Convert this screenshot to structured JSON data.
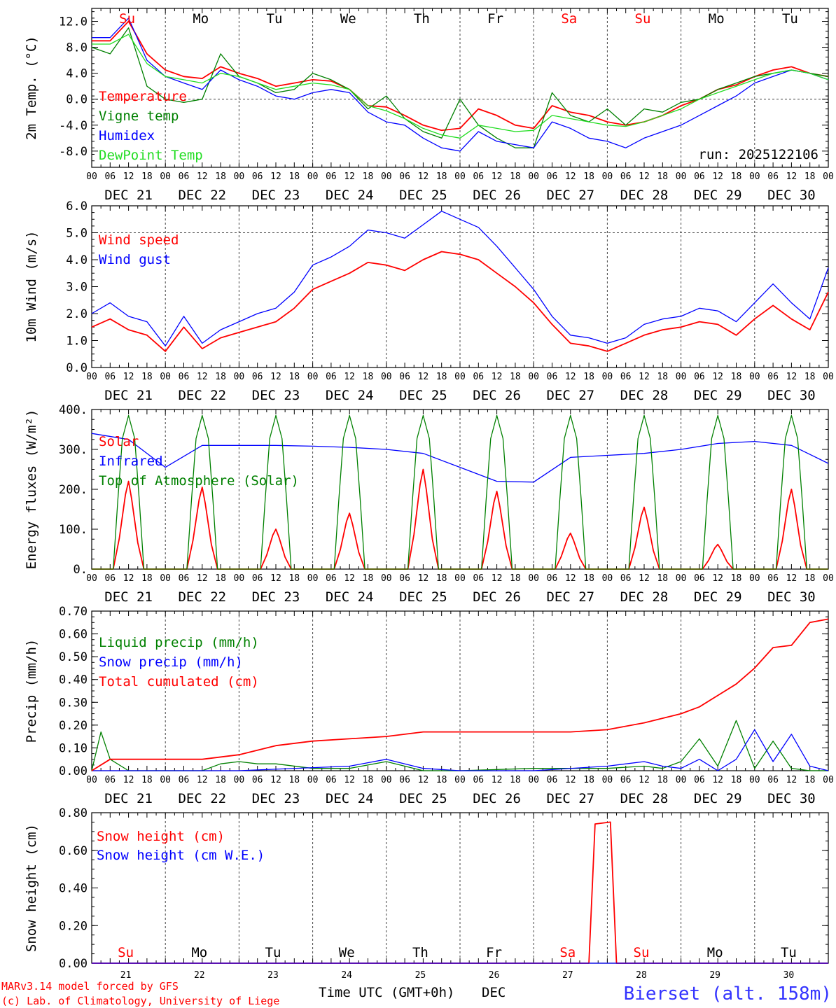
{
  "colors": {
    "red": "#ff0000",
    "blue": "#0000ff",
    "green": "#008000",
    "lime": "#22dd22",
    "grid": "#555555"
  },
  "footer": {
    "credit1": "MARv3.14 model forced by GFS",
    "credit2": "(c) Lab. of Climatology, University of Liege",
    "xlabel": "Time UTC (GMT+0h)",
    "month": "DEC",
    "station": "Bierset (alt. 158m)"
  },
  "chart_data": [
    {
      "type": "line",
      "id": "temp",
      "ylabel": "2m Temp. (°C)",
      "ylim": [
        -10.5,
        14.0
      ],
      "yticks": [
        -8.0,
        -4.0,
        0.0,
        4.0,
        8.0,
        12.0
      ],
      "ytick_labels": [
        "-8.0",
        "-4.0",
        "0.0",
        "4.0",
        "8.0",
        "12.0"
      ],
      "reference_line": 0.0,
      "annotation": "run: 2025122106",
      "day_labels": [
        {
          "text": "Su",
          "color": "red"
        },
        {
          "text": "Mo",
          "color": "black"
        },
        {
          "text": "Tu",
          "color": "black"
        },
        {
          "text": "We",
          "color": "black"
        },
        {
          "text": "Th",
          "color": "black"
        },
        {
          "text": "Fr",
          "color": "black"
        },
        {
          "text": "Sa",
          "color": "red"
        },
        {
          "text": "Su",
          "color": "red"
        },
        {
          "text": "Mo",
          "color": "black"
        },
        {
          "text": "Tu",
          "color": "black"
        }
      ],
      "x_hours": [
        0,
        6,
        12,
        18,
        24,
        30,
        36,
        42,
        48,
        54,
        60,
        66,
        72,
        78,
        84,
        90,
        96,
        102,
        108,
        114,
        120,
        126,
        132,
        138,
        144,
        150,
        156,
        162,
        168,
        174,
        180,
        186,
        192,
        198,
        204,
        210,
        216,
        222,
        228,
        234,
        240
      ],
      "series": [
        {
          "name": "Temperature",
          "color": "red",
          "values": [
            9.0,
            9.0,
            12.0,
            7.0,
            4.5,
            3.5,
            3.2,
            5.0,
            4.0,
            3.2,
            2.0,
            2.5,
            3.0,
            2.8,
            1.5,
            -1.0,
            -1.2,
            -2.5,
            -4.0,
            -4.8,
            -4.5,
            -1.5,
            -2.5,
            -4.0,
            -4.5,
            -1.0,
            -2.0,
            -2.5,
            -3.5,
            -4.0,
            -3.5,
            -2.5,
            -1.0,
            0.0,
            1.5,
            2.2,
            3.5,
            4.5,
            5.0,
            4.0,
            3.5
          ]
        },
        {
          "name": "Vigne temp",
          "color": "green",
          "values": [
            8.0,
            7.0,
            11.0,
            2.0,
            0.0,
            -0.5,
            0.0,
            7.0,
            3.5,
            2.5,
            1.0,
            1.5,
            4.0,
            3.0,
            1.5,
            -1.5,
            0.5,
            -3.0,
            -5.0,
            -6.0,
            0.0,
            -4.0,
            -6.0,
            -7.5,
            -7.5,
            1.0,
            -2.5,
            -3.5,
            -1.5,
            -4.0,
            -1.5,
            -2.0,
            -0.5,
            0.0,
            1.5,
            2.5,
            3.5,
            4.0,
            4.5,
            4.0,
            3.5
          ]
        },
        {
          "name": "Humidex",
          "color": "blue",
          "values": [
            9.5,
            9.5,
            12.5,
            6.0,
            3.5,
            2.5,
            1.5,
            4.5,
            3.0,
            2.0,
            0.5,
            0.0,
            1.0,
            1.5,
            1.0,
            -2.0,
            -3.5,
            -4.0,
            -6.0,
            -7.5,
            -8.0,
            -5.0,
            -6.5,
            -7.0,
            -7.5,
            -3.5,
            -4.5,
            -6.0,
            -6.5,
            -7.5,
            -6.0,
            -5.0,
            -4.0,
            -2.5,
            -1.0,
            0.5,
            2.5,
            3.5,
            4.5,
            4.0,
            3.0
          ]
        },
        {
          "name": "DewPoint Temp",
          "color": "lime",
          "values": [
            8.5,
            8.5,
            10.0,
            5.5,
            3.5,
            3.0,
            2.5,
            4.0,
            3.5,
            2.5,
            1.5,
            2.0,
            2.5,
            2.2,
            1.5,
            -1.0,
            -1.8,
            -3.0,
            -4.5,
            -5.5,
            -6.0,
            -4.0,
            -4.5,
            -5.0,
            -4.8,
            -2.5,
            -3.0,
            -3.5,
            -4.0,
            -4.2,
            -3.5,
            -2.5,
            -1.5,
            0.0,
            1.0,
            2.0,
            3.0,
            4.0,
            4.5,
            4.0,
            3.0
          ]
        }
      ]
    },
    {
      "type": "line",
      "id": "wind",
      "ylabel": "10m Wind (m/s)",
      "ylim": [
        0.0,
        6.0
      ],
      "yticks": [
        0.0,
        1.0,
        2.0,
        3.0,
        4.0,
        5.0,
        6.0
      ],
      "ytick_labels": [
        "0.0",
        "1.0",
        "2.0",
        "3.0",
        "4.0",
        "5.0",
        "6.0"
      ],
      "reference_line": 5.0,
      "x_hours": [
        0,
        6,
        12,
        18,
        24,
        30,
        36,
        42,
        48,
        54,
        60,
        66,
        72,
        78,
        84,
        90,
        96,
        102,
        108,
        114,
        120,
        126,
        132,
        138,
        144,
        150,
        156,
        162,
        168,
        174,
        180,
        186,
        192,
        198,
        204,
        210,
        216,
        222,
        228,
        234,
        240
      ],
      "series": [
        {
          "name": "Wind speed",
          "color": "red",
          "values": [
            1.5,
            1.8,
            1.4,
            1.2,
            0.6,
            1.5,
            0.7,
            1.1,
            1.3,
            1.5,
            1.7,
            2.2,
            2.9,
            3.2,
            3.5,
            3.9,
            3.8,
            3.6,
            4.0,
            4.3,
            4.2,
            4.0,
            3.5,
            3.0,
            2.4,
            1.6,
            0.9,
            0.8,
            0.6,
            0.9,
            1.2,
            1.4,
            1.5,
            1.7,
            1.6,
            1.2,
            1.8,
            2.3,
            1.8,
            1.4,
            2.8
          ]
        },
        {
          "name": "Wind gust",
          "color": "blue",
          "values": [
            2.0,
            2.4,
            1.9,
            1.7,
            0.8,
            1.9,
            0.9,
            1.4,
            1.7,
            2.0,
            2.2,
            2.8,
            3.8,
            4.1,
            4.5,
            5.1,
            5.0,
            4.8,
            5.3,
            5.8,
            5.5,
            5.2,
            4.5,
            3.7,
            2.9,
            1.9,
            1.2,
            1.1,
            0.9,
            1.1,
            1.6,
            1.8,
            1.9,
            2.2,
            2.1,
            1.7,
            2.4,
            3.1,
            2.4,
            1.8,
            3.7
          ]
        }
      ]
    },
    {
      "type": "line",
      "id": "energy",
      "ylabel": "Energy fluxes (W/m²)",
      "ylim": [
        0,
        400
      ],
      "yticks": [
        0,
        100,
        200,
        300,
        400
      ],
      "ytick_labels": [
        "0.",
        "100.",
        "200.",
        "300.",
        "400."
      ],
      "series": [
        {
          "name": "Solar",
          "color": "red",
          "day_peaks": [
            220,
            205,
            100,
            140,
            250,
            195,
            90,
            155,
            62,
            200
          ]
        },
        {
          "name": "Infrared",
          "color": "blue",
          "x_hours": [
            0,
            12,
            24,
            36,
            48,
            60,
            72,
            84,
            96,
            108,
            120,
            132,
            144,
            156,
            168,
            180,
            192,
            204,
            216,
            228,
            240
          ],
          "values": [
            340,
            325,
            255,
            310,
            310,
            310,
            308,
            305,
            300,
            290,
            255,
            220,
            218,
            280,
            285,
            290,
            300,
            315,
            320,
            310,
            265
          ]
        },
        {
          "name": "Top of Atmosphere (Solar)",
          "color": "green",
          "day_peak": 385
        }
      ]
    },
    {
      "type": "line",
      "id": "precip",
      "ylabel": "Precip (mm/h)",
      "ylim": [
        0.0,
        0.7
      ],
      "yticks": [
        0.0,
        0.1,
        0.2,
        0.3,
        0.4,
        0.5,
        0.6,
        0.7
      ],
      "ytick_labels": [
        "0.00",
        "0.10",
        "0.20",
        "0.30",
        "0.40",
        "0.50",
        "0.60",
        "0.70"
      ],
      "series": [
        {
          "name": "Liquid precip (mm/h)",
          "color": "green",
          "x_hours": [
            0,
            3,
            6,
            12,
            24,
            36,
            42,
            48,
            54,
            60,
            72,
            84,
            96,
            108,
            120,
            144,
            168,
            180,
            186,
            192,
            198,
            204,
            210,
            216,
            222,
            228,
            234,
            240
          ],
          "values": [
            0.0,
            0.17,
            0.05,
            0.0,
            0.0,
            0.0,
            0.03,
            0.04,
            0.03,
            0.03,
            0.01,
            0.01,
            0.04,
            0.0,
            0.0,
            0.01,
            0.01,
            0.02,
            0.01,
            0.04,
            0.14,
            0.02,
            0.22,
            0.01,
            0.13,
            0.01,
            0.0,
            0.0
          ]
        },
        {
          "name": "Snow precip (mm/h)",
          "color": "blue",
          "x_hours": [
            0,
            48,
            84,
            96,
            108,
            120,
            144,
            168,
            180,
            186,
            192,
            198,
            204,
            210,
            216,
            222,
            228,
            234,
            240
          ],
          "values": [
            0.0,
            0.0,
            0.02,
            0.05,
            0.01,
            0.0,
            0.0,
            0.02,
            0.04,
            0.02,
            0.01,
            0.05,
            0.0,
            0.05,
            0.18,
            0.04,
            0.16,
            0.02,
            0.0
          ]
        },
        {
          "name": "Total cumulated (cm)",
          "color": "red",
          "x_hours": [
            0,
            6,
            12,
            24,
            36,
            48,
            60,
            72,
            84,
            96,
            108,
            120,
            132,
            144,
            156,
            168,
            180,
            192,
            198,
            204,
            210,
            216,
            222,
            228,
            234,
            240
          ],
          "values": [
            0.0,
            0.05,
            0.05,
            0.05,
            0.05,
            0.07,
            0.11,
            0.13,
            0.14,
            0.15,
            0.17,
            0.17,
            0.17,
            0.17,
            0.17,
            0.18,
            0.21,
            0.25,
            0.28,
            0.33,
            0.38,
            0.45,
            0.54,
            0.55,
            0.65,
            0.665
          ]
        }
      ]
    },
    {
      "type": "line",
      "id": "snow",
      "ylabel": "Snow height (cm)",
      "ylim": [
        0.0,
        0.8
      ],
      "yticks": [
        0.0,
        0.2,
        0.4,
        0.6,
        0.8
      ],
      "ytick_labels": [
        "0.00",
        "0.20",
        "0.40",
        "0.60",
        "0.80"
      ],
      "day_labels": [
        {
          "text": "Su",
          "color": "red"
        },
        {
          "text": "Mo",
          "color": "black"
        },
        {
          "text": "Tu",
          "color": "black"
        },
        {
          "text": "We",
          "color": "black"
        },
        {
          "text": "Th",
          "color": "black"
        },
        {
          "text": "Fr",
          "color": "black"
        },
        {
          "text": "Sa",
          "color": "red"
        },
        {
          "text": "Su",
          "color": "red"
        },
        {
          "text": "Mo",
          "color": "black"
        },
        {
          "text": "Tu",
          "color": "black"
        }
      ],
      "day_numbers": [
        "21",
        "22",
        "23",
        "24",
        "25",
        "26",
        "27",
        "28",
        "29",
        "30"
      ],
      "series": [
        {
          "name": "Snow height (cm)",
          "color": "red",
          "x_hours": [
            0,
            162,
            164,
            169,
            171,
            240
          ],
          "values": [
            0.0,
            0.0,
            0.74,
            0.75,
            0.0,
            0.0
          ]
        },
        {
          "name": "Snow height (cm W.E.)",
          "color": "blue",
          "x_hours": [
            0,
            240
          ],
          "values": [
            0.0,
            0.0
          ]
        }
      ]
    }
  ],
  "x_axis": {
    "hour_labels": [
      "00",
      "06",
      "12",
      "18"
    ],
    "date_labels": [
      "DEC 21",
      "DEC 22",
      "DEC 23",
      "DEC 24",
      "DEC 25",
      "DEC 26",
      "DEC 27",
      "DEC 28",
      "DEC 29",
      "DEC 30"
    ]
  }
}
